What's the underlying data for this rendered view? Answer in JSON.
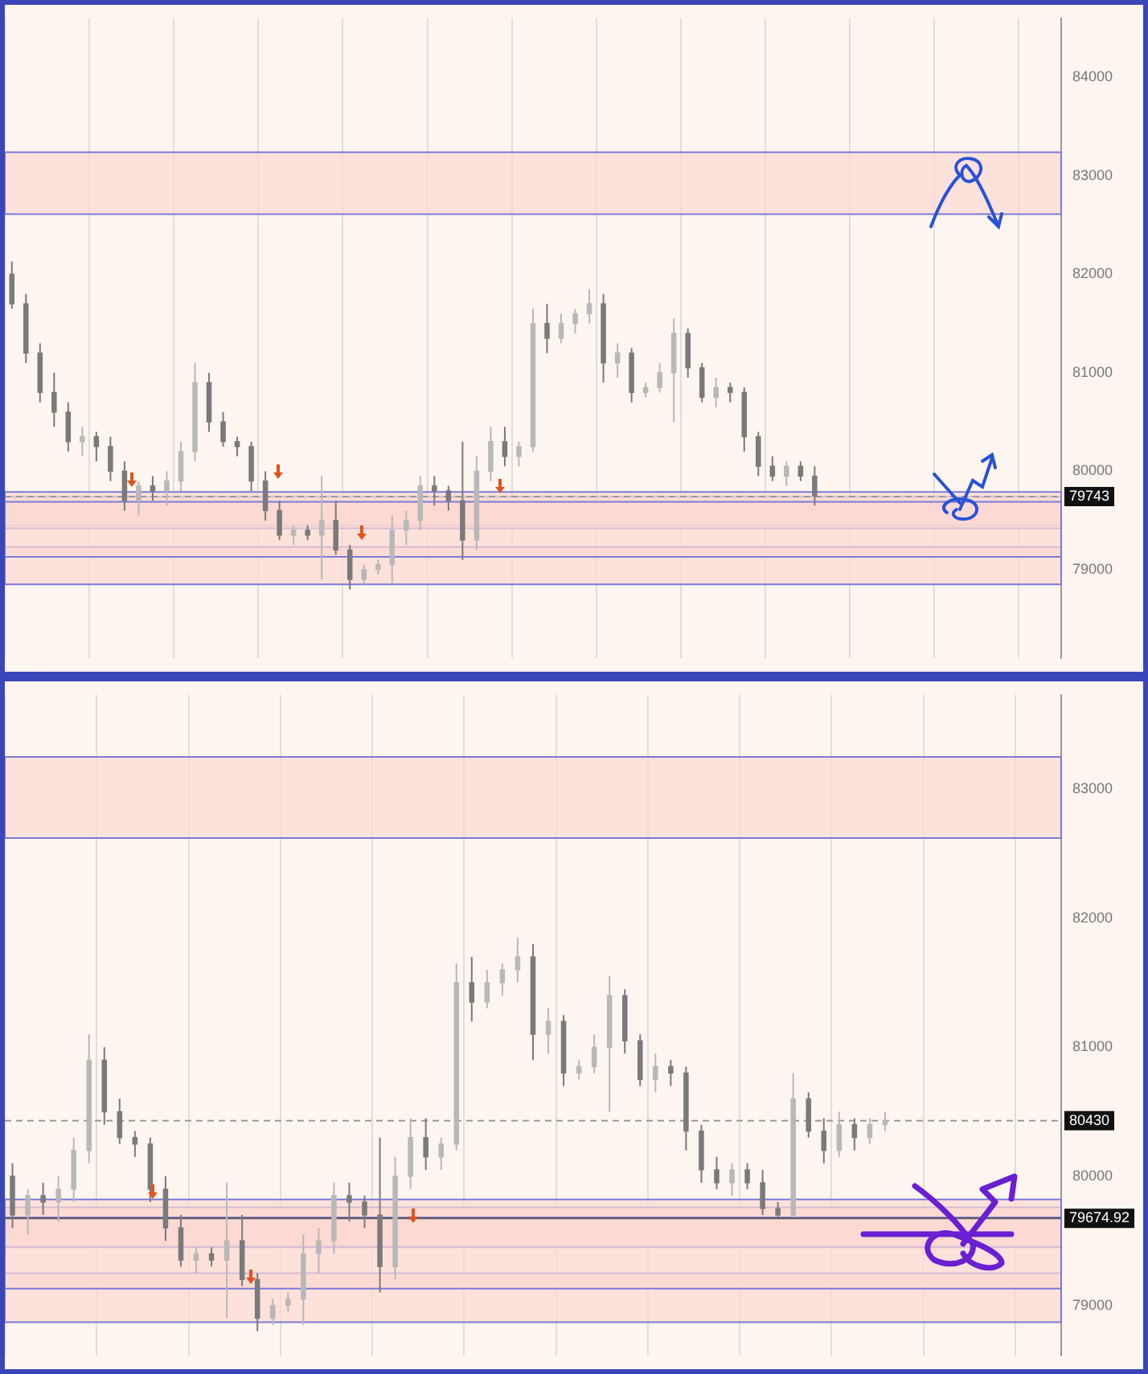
{
  "chart_data": [
    {
      "type": "candlestick",
      "grid": "x",
      "legend": false,
      "tick_labels": "y",
      "categories": [
        null,
        null,
        null,
        null,
        null,
        null,
        null,
        null,
        null,
        null,
        null,
        null,
        null,
        null,
        null,
        null,
        null,
        null,
        null,
        null,
        null,
        null,
        null,
        null,
        null,
        null,
        null,
        null,
        null,
        null,
        null,
        null,
        null,
        null,
        null,
        null,
        null,
        null,
        null,
        null,
        null,
        null,
        null,
        null,
        null,
        null,
        null,
        null,
        null,
        null,
        null,
        null,
        null,
        null,
        null,
        null,
        null,
        null,
        null,
        null,
        null,
        null,
        null,
        null,
        null,
        null,
        null,
        null,
        null,
        null,
        null,
        null,
        null,
        null,
        null
      ],
      "ohlc": [
        [
          82000,
          82130,
          81650,
          81700
        ],
        [
          81700,
          81800,
          81100,
          81200
        ],
        [
          81200,
          81300,
          80700,
          80800
        ],
        [
          80800,
          81000,
          80450,
          80600
        ],
        [
          80600,
          80700,
          80200,
          80300
        ],
        [
          80300,
          80450,
          80150,
          80350
        ],
        [
          80350,
          80400,
          80100,
          80250
        ],
        [
          80250,
          80350,
          79900,
          80000
        ],
        [
          80000,
          80100,
          79600,
          79700
        ],
        [
          79700,
          79900,
          79550,
          79850
        ],
        [
          79850,
          79950,
          79700,
          79800
        ],
        [
          79800,
          80000,
          79650,
          79900
        ],
        [
          79900,
          80300,
          79800,
          80200
        ],
        [
          80200,
          81100,
          80100,
          80900
        ],
        [
          80900,
          81000,
          80400,
          80500
        ],
        [
          80500,
          80600,
          80250,
          80300
        ],
        [
          80300,
          80350,
          80150,
          80250
        ],
        [
          80250,
          80300,
          79800,
          79900
        ],
        [
          79900,
          80000,
          79500,
          79600
        ],
        [
          79600,
          79700,
          79300,
          79350
        ],
        [
          79350,
          79450,
          79250,
          79400
        ],
        [
          79400,
          79450,
          79300,
          79350
        ],
        [
          79350,
          79950,
          78900,
          79500
        ],
        [
          79500,
          79700,
          79150,
          79200
        ],
        [
          79200,
          79250,
          78800,
          78900
        ],
        [
          78900,
          79050,
          78850,
          79000
        ],
        [
          79000,
          79100,
          78950,
          79050
        ],
        [
          79050,
          79550,
          78850,
          79400
        ],
        [
          79400,
          79600,
          79250,
          79500
        ],
        [
          79500,
          79950,
          79400,
          79850
        ],
        [
          79850,
          79950,
          79650,
          79800
        ],
        [
          79800,
          79850,
          79600,
          79700
        ],
        [
          79700,
          80300,
          79100,
          79300
        ],
        [
          79300,
          80150,
          79200,
          80000
        ],
        [
          80000,
          80450,
          79900,
          80300
        ],
        [
          80300,
          80450,
          80050,
          80150
        ],
        [
          80150,
          80300,
          80050,
          80250
        ],
        [
          80250,
          81650,
          80200,
          81500
        ],
        [
          81500,
          81700,
          81200,
          81350
        ],
        [
          81350,
          81600,
          81300,
          81500
        ],
        [
          81500,
          81650,
          81400,
          81600
        ],
        [
          81600,
          81850,
          81500,
          81700
        ],
        [
          81700,
          81800,
          80900,
          81100
        ],
        [
          81100,
          81300,
          80950,
          81200
        ],
        [
          81200,
          81250,
          80700,
          80800
        ],
        [
          80800,
          80900,
          80750,
          80850
        ],
        [
          80850,
          81100,
          80800,
          81000
        ],
        [
          81000,
          81550,
          80500,
          81400
        ],
        [
          81400,
          81450,
          80950,
          81050
        ],
        [
          81050,
          81100,
          80700,
          80750
        ],
        [
          80750,
          80950,
          80650,
          80850
        ],
        [
          80850,
          80900,
          80700,
          80800
        ],
        [
          80800,
          80850,
          80200,
          80350
        ],
        [
          80350,
          80400,
          79950,
          80050
        ],
        [
          80050,
          80150,
          79900,
          79950
        ],
        [
          79950,
          80100,
          79850,
          80050
        ],
        [
          80050,
          80100,
          79900,
          79950
        ],
        [
          79950,
          80050,
          79650,
          79750
        ],
        null,
        null,
        null,
        null,
        null,
        null,
        null,
        null,
        null,
        null,
        null,
        null,
        null,
        null,
        null,
        null,
        null
      ],
      "colors": [
        "#7a7a7a",
        "#7a7a7a",
        "#7a7a7a",
        "#7a7a7a",
        "#7a7a7a",
        "#b8b8b8",
        "#7a7a7a",
        "#7a7a7a",
        "#7a7a7a",
        "#b8b8b8",
        "#7a7a7a",
        "#b8b8b8",
        "#b8b8b8",
        "#b8b8b8",
        "#7a7a7a",
        "#7a7a7a",
        "#7a7a7a",
        "#7a7a7a",
        "#7a7a7a",
        "#7a7a7a",
        "#b8b8b8",
        "#7a7a7a",
        "#b8b8b8",
        "#7a7a7a",
        "#7a7a7a",
        "#b8b8b8",
        "#b8b8b8",
        "#b8b8b8",
        "#b8b8b8",
        "#b8b8b8",
        "#7a7a7a",
        "#7a7a7a",
        "#7a7a7a",
        "#b8b8b8",
        "#b8b8b8",
        "#7a7a7a",
        "#b8b8b8",
        "#b8b8b8",
        "#7a7a7a",
        "#b8b8b8",
        "#b8b8b8",
        "#b8b8b8",
        "#7a7a7a",
        "#b8b8b8",
        "#7a7a7a",
        "#b8b8b8",
        "#b8b8b8",
        "#b8b8b8",
        "#7a7a7a",
        "#7a7a7a",
        "#b8b8b8",
        "#7a7a7a",
        "#7a7a7a",
        "#7a7a7a",
        "#7a7a7a",
        "#b8b8b8",
        "#7a7a7a",
        "#7a7a7a",
        null,
        null,
        null,
        null,
        null,
        null,
        null,
        null,
        null,
        null,
        null,
        null,
        null,
        null,
        null,
        null,
        null
      ],
      "ylim": [
        78100,
        84600
      ],
      "yticks": [
        79000,
        80000,
        81000,
        82000,
        83000,
        84000
      ],
      "bands": [
        {
          "axis": "y",
          "from": 82610,
          "to": 83240,
          "color": "#fcd9d3"
        },
        {
          "axis": "y",
          "from": 79450,
          "to": 79740,
          "color": "#fcd9d3"
        },
        {
          "axis": "y",
          "from": 79420,
          "to": 79790,
          "color": "#fcd9d3"
        },
        {
          "axis": "y",
          "from": 78850,
          "to": 79230,
          "color": "#fcd9d3"
        },
        {
          "axis": "y",
          "from": 79130,
          "to": 79690,
          "color": "#fcd9d3"
        }
      ],
      "ref_lines": [
        {
          "axis": "y",
          "value": 79743,
          "label": "79743",
          "color": "#9a9a9a",
          "line_style": "dashed"
        }
      ]
    },
    {
      "type": "candlestick",
      "grid": "x",
      "legend": false,
      "tick_labels": "y",
      "categories": [
        null,
        null,
        null,
        null,
        null,
        null,
        null,
        null,
        null,
        null,
        null,
        null,
        null,
        null,
        null,
        null,
        null,
        null,
        null,
        null,
        null,
        null,
        null,
        null,
        null,
        null,
        null,
        null,
        null,
        null,
        null,
        null,
        null,
        null,
        null,
        null,
        null,
        null,
        null,
        null,
        null,
        null,
        null,
        null,
        null,
        null,
        null,
        null,
        null,
        null,
        null,
        null,
        null,
        null,
        null,
        null,
        null,
        null,
        null,
        null,
        null,
        null,
        null,
        null,
        null,
        null,
        null,
        null,
        null
      ],
      "ohlc": [
        [
          80000,
          80100,
          79600,
          79700
        ],
        [
          79700,
          79900,
          79550,
          79850
        ],
        [
          79850,
          79950,
          79700,
          79800
        ],
        [
          79800,
          80000,
          79650,
          79900
        ],
        [
          79900,
          80300,
          79800,
          80200
        ],
        [
          80200,
          81100,
          80100,
          80900
        ],
        [
          80900,
          81000,
          80400,
          80500
        ],
        [
          80500,
          80600,
          80250,
          80300
        ],
        [
          80300,
          80350,
          80150,
          80250
        ],
        [
          80250,
          80300,
          79800,
          79900
        ],
        [
          79900,
          80000,
          79500,
          79600
        ],
        [
          79600,
          79700,
          79300,
          79350
        ],
        [
          79350,
          79450,
          79250,
          79400
        ],
        [
          79400,
          79450,
          79300,
          79350
        ],
        [
          79350,
          79950,
          78900,
          79500
        ],
        [
          79500,
          79700,
          79150,
          79200
        ],
        [
          79200,
          79250,
          78800,
          78900
        ],
        [
          78900,
          79050,
          78850,
          79000
        ],
        [
          79000,
          79100,
          78950,
          79050
        ],
        [
          79050,
          79550,
          78850,
          79400
        ],
        [
          79400,
          79600,
          79250,
          79500
        ],
        [
          79500,
          79950,
          79400,
          79850
        ],
        [
          79850,
          79950,
          79650,
          79800
        ],
        [
          79800,
          79850,
          79600,
          79700
        ],
        [
          79700,
          80300,
          79100,
          79300
        ],
        [
          79300,
          80150,
          79200,
          80000
        ],
        [
          80000,
          80450,
          79900,
          80300
        ],
        [
          80300,
          80450,
          80050,
          80150
        ],
        [
          80150,
          80300,
          80050,
          80250
        ],
        [
          80250,
          81650,
          80200,
          81500
        ],
        [
          81500,
          81700,
          81200,
          81350
        ],
        [
          81350,
          81600,
          81300,
          81500
        ],
        [
          81500,
          81650,
          81400,
          81600
        ],
        [
          81600,
          81850,
          81500,
          81700
        ],
        [
          81700,
          81800,
          80900,
          81100
        ],
        [
          81100,
          81300,
          80950,
          81200
        ],
        [
          81200,
          81250,
          80700,
          80800
        ],
        [
          80800,
          80900,
          80750,
          80850
        ],
        [
          80850,
          81100,
          80800,
          81000
        ],
        [
          81000,
          81550,
          80500,
          81400
        ],
        [
          81400,
          81450,
          80950,
          81050
        ],
        [
          81050,
          81100,
          80700,
          80750
        ],
        [
          80750,
          80950,
          80650,
          80850
        ],
        [
          80850,
          80900,
          80700,
          80800
        ],
        [
          80800,
          80850,
          80200,
          80350
        ],
        [
          80350,
          80400,
          79950,
          80050
        ],
        [
          80050,
          80150,
          79900,
          79950
        ],
        [
          79950,
          80100,
          79850,
          80050
        ],
        [
          80050,
          80100,
          79900,
          79950
        ],
        [
          79950,
          80050,
          79700,
          79750
        ],
        [
          79750,
          79800,
          79680,
          79700
        ],
        [
          79700,
          80800,
          79680,
          80600
        ],
        [
          80600,
          80650,
          80300,
          80350
        ],
        [
          80350,
          80450,
          80100,
          80200
        ],
        [
          80200,
          80500,
          80150,
          80400
        ],
        [
          80400,
          80450,
          80200,
          80300
        ],
        [
          80300,
          80450,
          80250,
          80400
        ],
        [
          80400,
          80500,
          80350,
          80430
        ],
        null,
        null,
        null,
        null,
        null,
        null,
        null,
        null,
        null,
        null,
        null
      ],
      "colors": [
        "#7a7a7a",
        "#b8b8b8",
        "#7a7a7a",
        "#b8b8b8",
        "#b8b8b8",
        "#b8b8b8",
        "#7a7a7a",
        "#7a7a7a",
        "#7a7a7a",
        "#7a7a7a",
        "#7a7a7a",
        "#7a7a7a",
        "#b8b8b8",
        "#7a7a7a",
        "#b8b8b8",
        "#7a7a7a",
        "#7a7a7a",
        "#b8b8b8",
        "#b8b8b8",
        "#b8b8b8",
        "#b8b8b8",
        "#b8b8b8",
        "#7a7a7a",
        "#7a7a7a",
        "#7a7a7a",
        "#b8b8b8",
        "#b8b8b8",
        "#7a7a7a",
        "#b8b8b8",
        "#b8b8b8",
        "#7a7a7a",
        "#b8b8b8",
        "#b8b8b8",
        "#b8b8b8",
        "#7a7a7a",
        "#b8b8b8",
        "#7a7a7a",
        "#b8b8b8",
        "#b8b8b8",
        "#b8b8b8",
        "#7a7a7a",
        "#7a7a7a",
        "#b8b8b8",
        "#7a7a7a",
        "#7a7a7a",
        "#7a7a7a",
        "#7a7a7a",
        "#b8b8b8",
        "#7a7a7a",
        "#7a7a7a",
        "#7a7a7a",
        "#b8b8b8",
        "#7a7a7a",
        "#7a7a7a",
        "#b8b8b8",
        "#7a7a7a",
        "#b8b8b8",
        "#b8b8b8",
        null,
        null,
        null,
        null,
        null,
        null,
        null,
        null,
        null,
        null,
        null
      ],
      "ylim": [
        78610,
        83730
      ],
      "yticks": [
        79000,
        80000,
        81000,
        82000,
        83000
      ],
      "bands": [
        {
          "axis": "y",
          "from": 82620,
          "to": 83250,
          "color": "#fcd9d3"
        },
        {
          "axis": "y",
          "from": 79460,
          "to": 79760,
          "color": "#fcd9d3"
        },
        {
          "axis": "y",
          "from": 79450,
          "to": 79820,
          "color": "#fcd9d3"
        },
        {
          "axis": "y",
          "from": 78870,
          "to": 79250,
          "color": "#fcd9d3"
        },
        {
          "axis": "y",
          "from": 79130,
          "to": 79680,
          "color": "#fcd9d3"
        }
      ],
      "ref_lines": [
        {
          "axis": "y",
          "value": 80430,
          "label": "80430",
          "color": "#9a9a9a",
          "line_style": "dashed"
        },
        {
          "axis": "y",
          "value": 79674.92,
          "label": "79674.92",
          "color": "#555555",
          "line_style": "solid"
        }
      ]
    }
  ]
}
